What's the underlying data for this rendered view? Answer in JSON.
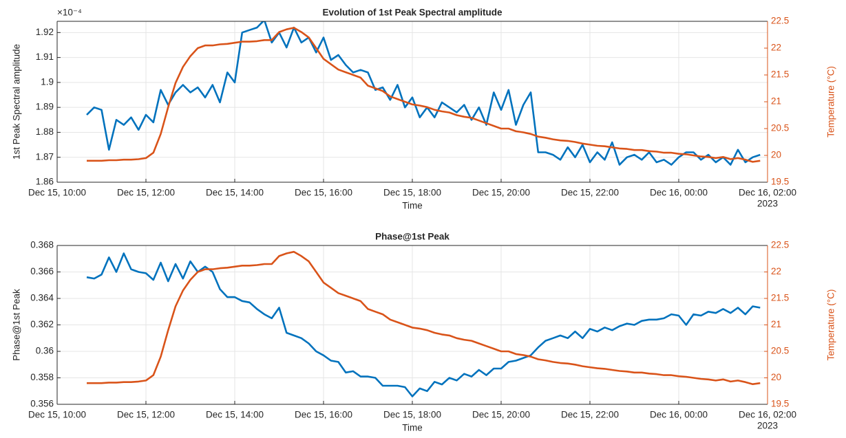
{
  "chart_data": [
    {
      "type": "line",
      "title": "Evolution of 1st Peak Spectral amplitude",
      "xlabel": "Time",
      "ylabel": "1st Peak Spectral amplitude",
      "y2label": "Temperature (°C)",
      "yexponent": "×10⁻⁴",
      "xyear": "2023",
      "x": [
        "2023-12-15 10:40",
        "2023-12-15 10:50",
        "2023-12-15 11:00",
        "2023-12-15 11:10",
        "2023-12-15 11:20",
        "2023-12-15 11:30",
        "2023-12-15 11:40",
        "2023-12-15 11:50",
        "2023-12-15 12:00",
        "2023-12-15 12:10",
        "2023-12-15 12:20",
        "2023-12-15 12:30",
        "2023-12-15 12:40",
        "2023-12-15 12:50",
        "2023-12-15 13:00",
        "2023-12-15 13:10",
        "2023-12-15 13:20",
        "2023-12-15 13:30",
        "2023-12-15 13:40",
        "2023-12-15 13:50",
        "2023-12-15 14:00",
        "2023-12-15 14:10",
        "2023-12-15 14:20",
        "2023-12-15 14:30",
        "2023-12-15 14:40",
        "2023-12-15 14:50",
        "2023-12-15 15:00",
        "2023-12-15 15:10",
        "2023-12-15 15:20",
        "2023-12-15 15:30",
        "2023-12-15 15:40",
        "2023-12-15 15:50",
        "2023-12-15 16:00",
        "2023-12-15 16:10",
        "2023-12-15 16:20",
        "2023-12-15 16:30",
        "2023-12-15 16:40",
        "2023-12-15 16:50",
        "2023-12-15 17:00",
        "2023-12-15 17:10",
        "2023-12-15 17:20",
        "2023-12-15 17:30",
        "2023-12-15 17:40",
        "2023-12-15 17:50",
        "2023-12-15 18:00",
        "2023-12-15 18:10",
        "2023-12-15 18:20",
        "2023-12-15 18:30",
        "2023-12-15 18:40",
        "2023-12-15 18:50",
        "2023-12-15 19:00",
        "2023-12-15 19:10",
        "2023-12-15 19:20",
        "2023-12-15 19:30",
        "2023-12-15 19:40",
        "2023-12-15 19:50",
        "2023-12-15 20:00",
        "2023-12-15 20:10",
        "2023-12-15 20:20",
        "2023-12-15 20:30",
        "2023-12-15 20:40",
        "2023-12-15 20:50",
        "2023-12-15 21:00",
        "2023-12-15 21:10",
        "2023-12-15 21:20",
        "2023-12-15 21:30",
        "2023-12-15 21:40",
        "2023-12-15 21:50",
        "2023-12-15 22:00",
        "2023-12-15 22:10",
        "2023-12-15 22:20",
        "2023-12-15 22:30",
        "2023-12-15 22:40",
        "2023-12-15 22:50",
        "2023-12-15 23:00",
        "2023-12-15 23:10",
        "2023-12-15 23:20",
        "2023-12-15 23:30",
        "2023-12-15 23:40",
        "2023-12-15 23:50",
        "2023-12-16 00:00",
        "2023-12-16 00:10",
        "2023-12-16 00:20",
        "2023-12-16 00:30",
        "2023-12-16 00:40",
        "2023-12-16 00:50",
        "2023-12-16 01:00",
        "2023-12-16 01:10",
        "2023-12-16 01:20",
        "2023-12-16 01:30",
        "2023-12-16 01:40",
        "2023-12-16 01:50"
      ],
      "xlim": [
        "2023-12-15 10:00",
        "2023-12-16 02:00"
      ],
      "xticks": [
        {
          "value": "2023-12-15 10:00",
          "label": "Dec 15, 10:00"
        },
        {
          "value": "2023-12-15 12:00",
          "label": "Dec 15, 12:00"
        },
        {
          "value": "2023-12-15 14:00",
          "label": "Dec 15, 14:00"
        },
        {
          "value": "2023-12-15 16:00",
          "label": "Dec 15, 16:00"
        },
        {
          "value": "2023-12-15 18:00",
          "label": "Dec 15, 18:00"
        },
        {
          "value": "2023-12-15 20:00",
          "label": "Dec 15, 20:00"
        },
        {
          "value": "2023-12-15 22:00",
          "label": "Dec 15, 22:00"
        },
        {
          "value": "2023-12-16 00:00",
          "label": "Dec 16, 00:00"
        },
        {
          "value": "2023-12-16 02:00",
          "label": "Dec 16, 02:00"
        }
      ],
      "ylim": [
        1.86,
        1.9245
      ],
      "yticks": [
        1.86,
        1.87,
        1.88,
        1.89,
        1.9,
        1.91,
        1.92
      ],
      "y2lim": [
        19.5,
        22.5
      ],
      "y2ticks": [
        19.5,
        20,
        20.5,
        21,
        21.5,
        22,
        22.5
      ],
      "grid": true,
      "series": [
        {
          "color": "#0072BD",
          "values": [
            1.887,
            1.89,
            1.889,
            1.873,
            1.885,
            1.883,
            1.886,
            1.881,
            1.887,
            1.884,
            1.897,
            1.891,
            1.896,
            1.899,
            1.896,
            1.898,
            1.894,
            1.899,
            1.892,
            1.904,
            1.9,
            1.92,
            1.921,
            1.922,
            1.925,
            1.916,
            1.92,
            1.914,
            1.922,
            1.916,
            1.918,
            1.912,
            1.918,
            1.909,
            1.911,
            1.907,
            1.904,
            1.905,
            1.904,
            1.897,
            1.898,
            1.893,
            1.899,
            1.89,
            1.894,
            1.886,
            1.89,
            1.886,
            1.892,
            1.89,
            1.888,
            1.891,
            1.885,
            1.89,
            1.883,
            1.896,
            1.889,
            1.897,
            1.883,
            1.891,
            1.896,
            1.872,
            1.872,
            1.871,
            1.869,
            1.874,
            1.87,
            1.875,
            1.868,
            1.872,
            1.869,
            1.876,
            1.867,
            1.87,
            1.871,
            1.869,
            1.872,
            1.868,
            1.869,
            1.867,
            1.87,
            1.872,
            1.872,
            1.869,
            1.871,
            1.868,
            1.87,
            1.867,
            1.873,
            1.868,
            1.87,
            1.871
          ]
        },
        {
          "color": "#D95319",
          "axis": "y2",
          "values": [
            19.9,
            19.9,
            19.9,
            19.91,
            19.91,
            19.92,
            19.92,
            19.93,
            19.95,
            20.05,
            20.4,
            20.9,
            21.35,
            21.65,
            21.85,
            22.0,
            22.05,
            22.05,
            22.07,
            22.08,
            22.1,
            22.12,
            22.12,
            22.13,
            22.15,
            22.15,
            22.3,
            22.35,
            22.38,
            22.3,
            22.2,
            22.0,
            21.8,
            21.7,
            21.6,
            21.55,
            21.5,
            21.45,
            21.3,
            21.25,
            21.2,
            21.1,
            21.05,
            21.0,
            20.95,
            20.93,
            20.9,
            20.85,
            20.82,
            20.8,
            20.75,
            20.72,
            20.7,
            20.65,
            20.6,
            20.55,
            20.5,
            20.5,
            20.45,
            20.43,
            20.4,
            20.35,
            20.33,
            20.3,
            20.28,
            20.27,
            20.25,
            20.22,
            20.2,
            20.18,
            20.17,
            20.15,
            20.13,
            20.12,
            20.1,
            20.1,
            20.08,
            20.07,
            20.05,
            20.05,
            20.03,
            20.02,
            20.0,
            19.98,
            19.97,
            19.95,
            19.97,
            19.93,
            19.95,
            19.92,
            19.88,
            19.9
          ]
        }
      ]
    },
    {
      "type": "line",
      "title": "Phase@1st Peak",
      "xlabel": "Time",
      "ylabel": "Phase@1st Peak",
      "y2label": "Temperature (°C)",
      "xyear": "2023",
      "x": [
        "2023-12-15 10:40",
        "2023-12-15 10:50",
        "2023-12-15 11:00",
        "2023-12-15 11:10",
        "2023-12-15 11:20",
        "2023-12-15 11:30",
        "2023-12-15 11:40",
        "2023-12-15 11:50",
        "2023-12-15 12:00",
        "2023-12-15 12:10",
        "2023-12-15 12:20",
        "2023-12-15 12:30",
        "2023-12-15 12:40",
        "2023-12-15 12:50",
        "2023-12-15 13:00",
        "2023-12-15 13:10",
        "2023-12-15 13:20",
        "2023-12-15 13:30",
        "2023-12-15 13:40",
        "2023-12-15 13:50",
        "2023-12-15 14:00",
        "2023-12-15 14:10",
        "2023-12-15 14:20",
        "2023-12-15 14:30",
        "2023-12-15 14:40",
        "2023-12-15 14:50",
        "2023-12-15 15:00",
        "2023-12-15 15:10",
        "2023-12-15 15:20",
        "2023-12-15 15:30",
        "2023-12-15 15:40",
        "2023-12-15 15:50",
        "2023-12-15 16:00",
        "2023-12-15 16:10",
        "2023-12-15 16:20",
        "2023-12-15 16:30",
        "2023-12-15 16:40",
        "2023-12-15 16:50",
        "2023-12-15 17:00",
        "2023-12-15 17:10",
        "2023-12-15 17:20",
        "2023-12-15 17:30",
        "2023-12-15 17:40",
        "2023-12-15 17:50",
        "2023-12-15 18:00",
        "2023-12-15 18:10",
        "2023-12-15 18:20",
        "2023-12-15 18:30",
        "2023-12-15 18:40",
        "2023-12-15 18:50",
        "2023-12-15 19:00",
        "2023-12-15 19:10",
        "2023-12-15 19:20",
        "2023-12-15 19:30",
        "2023-12-15 19:40",
        "2023-12-15 19:50",
        "2023-12-15 20:00",
        "2023-12-15 20:10",
        "2023-12-15 20:20",
        "2023-12-15 20:30",
        "2023-12-15 20:40",
        "2023-12-15 20:50",
        "2023-12-15 21:00",
        "2023-12-15 21:10",
        "2023-12-15 21:20",
        "2023-12-15 21:30",
        "2023-12-15 21:40",
        "2023-12-15 21:50",
        "2023-12-15 22:00",
        "2023-12-15 22:10",
        "2023-12-15 22:20",
        "2023-12-15 22:30",
        "2023-12-15 22:40",
        "2023-12-15 22:50",
        "2023-12-15 23:00",
        "2023-12-15 23:10",
        "2023-12-15 23:20",
        "2023-12-15 23:30",
        "2023-12-15 23:40",
        "2023-12-15 23:50",
        "2023-12-16 00:00",
        "2023-12-16 00:10",
        "2023-12-16 00:20",
        "2023-12-16 00:30",
        "2023-12-16 00:40",
        "2023-12-16 00:50",
        "2023-12-16 01:00",
        "2023-12-16 01:10",
        "2023-12-16 01:20",
        "2023-12-16 01:30",
        "2023-12-16 01:40",
        "2023-12-16 01:50"
      ],
      "xlim": [
        "2023-12-15 10:00",
        "2023-12-16 02:00"
      ],
      "xticks": [
        {
          "value": "2023-12-15 10:00",
          "label": "Dec 15, 10:00"
        },
        {
          "value": "2023-12-15 12:00",
          "label": "Dec 15, 12:00"
        },
        {
          "value": "2023-12-15 14:00",
          "label": "Dec 15, 14:00"
        },
        {
          "value": "2023-12-15 16:00",
          "label": "Dec 15, 16:00"
        },
        {
          "value": "2023-12-15 18:00",
          "label": "Dec 15, 18:00"
        },
        {
          "value": "2023-12-15 20:00",
          "label": "Dec 15, 20:00"
        },
        {
          "value": "2023-12-15 22:00",
          "label": "Dec 15, 22:00"
        },
        {
          "value": "2023-12-16 00:00",
          "label": "Dec 16, 00:00"
        },
        {
          "value": "2023-12-16 02:00",
          "label": "Dec 16, 02:00"
        }
      ],
      "ylim": [
        0.356,
        0.368
      ],
      "yticks": [
        0.356,
        0.358,
        0.36,
        0.362,
        0.364,
        0.366,
        0.368
      ],
      "y2lim": [
        19.5,
        22.5
      ],
      "y2ticks": [
        19.5,
        20,
        20.5,
        21,
        21.5,
        22,
        22.5
      ],
      "grid": true,
      "series": [
        {
          "color": "#0072BD",
          "values": [
            0.3656,
            0.3655,
            0.3658,
            0.3671,
            0.366,
            0.3674,
            0.3662,
            0.366,
            0.3659,
            0.3654,
            0.3667,
            0.3653,
            0.3666,
            0.3655,
            0.3668,
            0.366,
            0.3664,
            0.366,
            0.3647,
            0.3641,
            0.3641,
            0.3638,
            0.3637,
            0.3632,
            0.3628,
            0.3625,
            0.3633,
            0.3614,
            0.3612,
            0.361,
            0.3606,
            0.36,
            0.3597,
            0.3593,
            0.3592,
            0.3584,
            0.3585,
            0.3581,
            0.3581,
            0.358,
            0.3574,
            0.3574,
            0.3574,
            0.3573,
            0.3566,
            0.3572,
            0.357,
            0.3577,
            0.3575,
            0.358,
            0.3578,
            0.3583,
            0.3581,
            0.3586,
            0.3582,
            0.3587,
            0.3587,
            0.3592,
            0.3593,
            0.3595,
            0.3597,
            0.3603,
            0.3608,
            0.361,
            0.3612,
            0.361,
            0.3615,
            0.361,
            0.3617,
            0.3615,
            0.3618,
            0.3616,
            0.3619,
            0.3621,
            0.362,
            0.3623,
            0.3624,
            0.3624,
            0.3625,
            0.3628,
            0.3627,
            0.362,
            0.3628,
            0.3627,
            0.363,
            0.3629,
            0.3632,
            0.3629,
            0.3633,
            0.3628,
            0.3634,
            0.3633
          ]
        },
        {
          "color": "#D95319",
          "axis": "y2",
          "values": [
            19.9,
            19.9,
            19.9,
            19.91,
            19.91,
            19.92,
            19.92,
            19.93,
            19.95,
            20.05,
            20.4,
            20.9,
            21.35,
            21.65,
            21.85,
            22.0,
            22.05,
            22.05,
            22.07,
            22.08,
            22.1,
            22.12,
            22.12,
            22.13,
            22.15,
            22.15,
            22.3,
            22.35,
            22.38,
            22.3,
            22.2,
            22.0,
            21.8,
            21.7,
            21.6,
            21.55,
            21.5,
            21.45,
            21.3,
            21.25,
            21.2,
            21.1,
            21.05,
            21.0,
            20.95,
            20.93,
            20.9,
            20.85,
            20.82,
            20.8,
            20.75,
            20.72,
            20.7,
            20.65,
            20.6,
            20.55,
            20.5,
            20.5,
            20.45,
            20.43,
            20.4,
            20.35,
            20.33,
            20.3,
            20.28,
            20.27,
            20.25,
            20.22,
            20.2,
            20.18,
            20.17,
            20.15,
            20.13,
            20.12,
            20.1,
            20.1,
            20.08,
            20.07,
            20.05,
            20.05,
            20.03,
            20.02,
            20.0,
            19.98,
            19.97,
            19.95,
            19.97,
            19.93,
            19.95,
            19.92,
            19.88,
            19.9
          ]
        }
      ]
    }
  ]
}
